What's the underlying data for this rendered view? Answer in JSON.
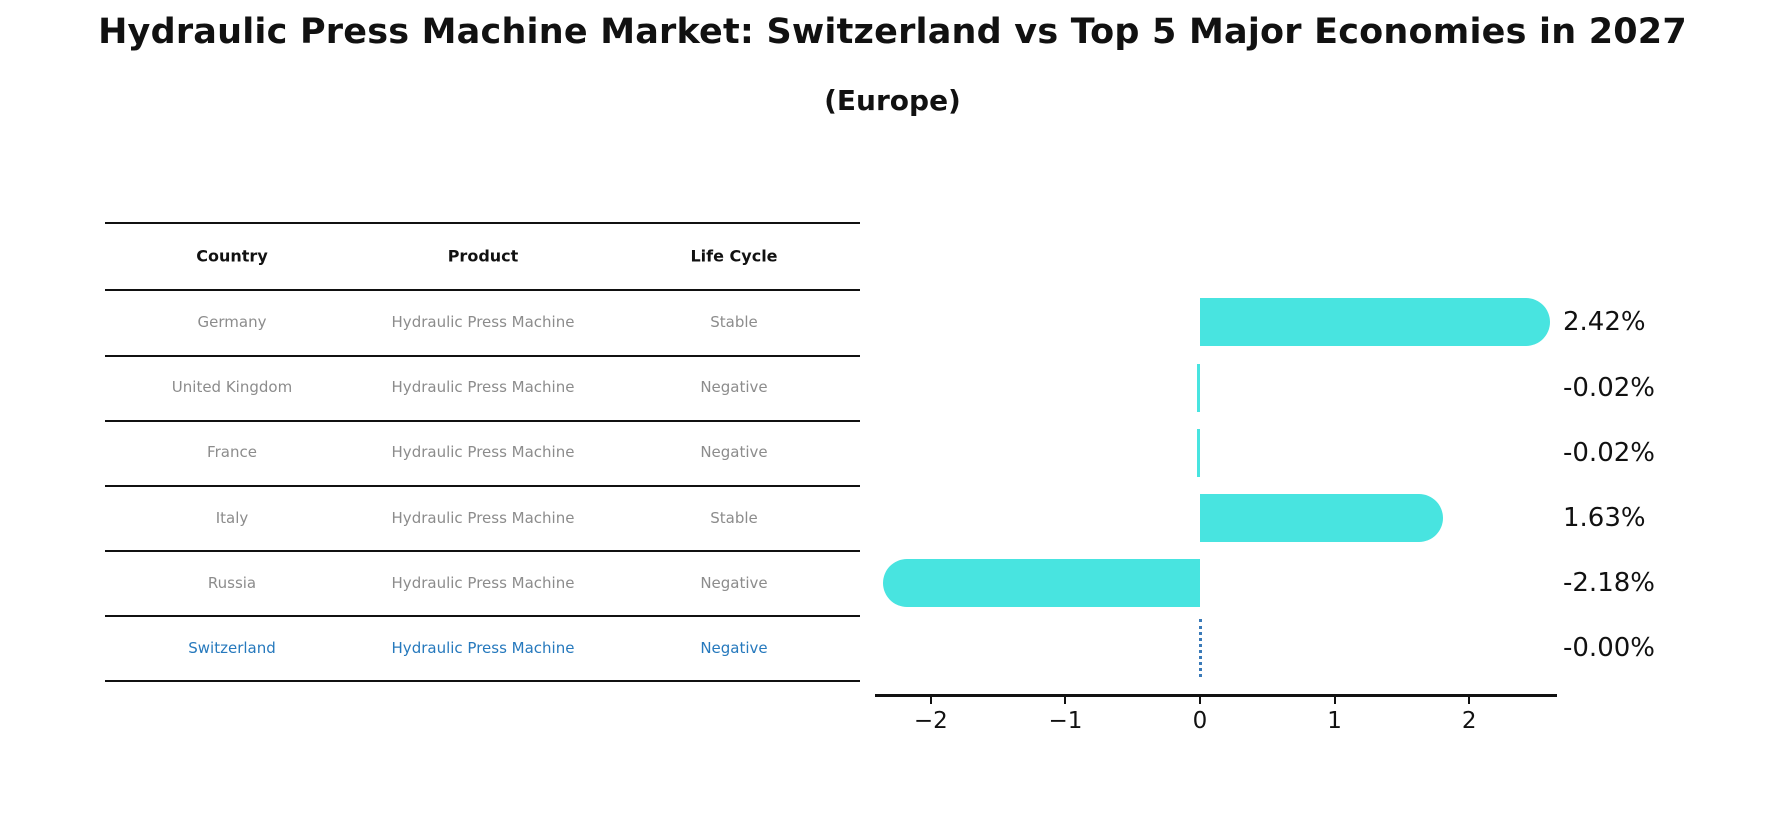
{
  "header": {
    "title": "Hydraulic Press Machine Market: Switzerland vs Top 5 Major Economies in 2027",
    "subtitle": "(Europe)"
  },
  "table": {
    "columns": [
      "Country",
      "Product",
      "Life Cycle"
    ],
    "rows": [
      {
        "country": "Germany",
        "product": "Hydraulic Press Machine",
        "life_cycle": "Stable",
        "highlight": false
      },
      {
        "country": "United Kingdom",
        "product": "Hydraulic Press Machine",
        "life_cycle": "Negative",
        "highlight": false
      },
      {
        "country": "France",
        "product": "Hydraulic Press Machine",
        "life_cycle": "Negative",
        "highlight": false
      },
      {
        "country": "Italy",
        "product": "Hydraulic Press Machine",
        "life_cycle": "Stable",
        "highlight": false
      },
      {
        "country": "Russia",
        "product": "Hydraulic Press Machine",
        "life_cycle": "Negative",
        "highlight": false
      },
      {
        "country": "Switzerland",
        "product": "Hydraulic Press Machine",
        "life_cycle": "Negative",
        "highlight": true
      }
    ]
  },
  "chart_data": {
    "type": "bar",
    "orientation": "horizontal",
    "title": "Hydraulic Press Machine Market: Switzerland vs Top 5 Major Economies in 2027 (Europe)",
    "categories": [
      "Germany",
      "United Kingdom",
      "France",
      "Italy",
      "Russia",
      "Switzerland"
    ],
    "values": [
      2.42,
      -0.02,
      -0.02,
      1.63,
      -2.18,
      0.0
    ],
    "value_labels": [
      "2.42%",
      "-0.02%",
      "-0.02%",
      "1.63%",
      "-2.18%",
      "-0.00%"
    ],
    "x_ticks": [
      -2,
      -1,
      0,
      1,
      2
    ],
    "x_tick_labels": [
      "−2",
      "−1",
      "0",
      "1",
      "2"
    ],
    "xlim": [
      -2.41,
      2.65
    ],
    "xlabel": "",
    "ylabel": "",
    "grid": false,
    "legend": false,
    "zero_marker": {
      "category": "Switzerland",
      "style": "dotted-vertical-line",
      "at_value": 0
    }
  },
  "colors": {
    "bar": "#48e4e0",
    "row_text": "#8c8c8c",
    "highlight_text": "#2679bd",
    "dashed_line": "#3a7ab8",
    "rule_line": "#111111"
  }
}
